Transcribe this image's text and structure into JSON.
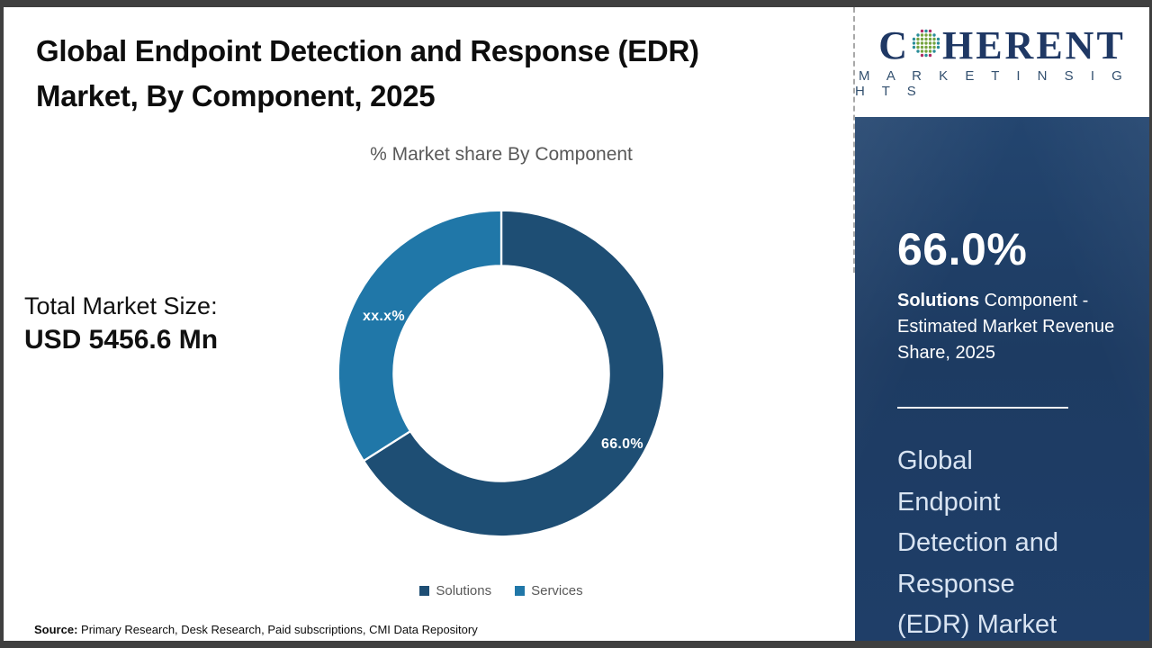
{
  "header": {
    "title": "Global Endpoint Detection and Response (EDR)\nMarket, By Component, 2025",
    "subtitle": "% Market share By Component"
  },
  "stats": {
    "total_label": "Total Market Size:",
    "total_value": "USD 5456.6 Mn"
  },
  "chart_data": {
    "type": "pie",
    "donut": true,
    "title": "% Market share By Component",
    "categories": [
      "Solutions",
      "Services"
    ],
    "values": [
      66.0,
      34.0
    ],
    "slice_labels": [
      "66.0%",
      "xx.x%"
    ],
    "colors": [
      "#1e4e74",
      "#2077a8"
    ],
    "start_angle_deg": 0,
    "direction": "clockwise",
    "legend_position": "bottom",
    "note": "Services share is masked on the chart as xx.x%"
  },
  "legend": {
    "items": [
      {
        "label": "Solutions",
        "color": "#1e4e74"
      },
      {
        "label": "Services",
        "color": "#2077a8"
      }
    ]
  },
  "source": {
    "label": "Source:",
    "text": " Primary Research, Desk Research, Paid subscriptions, CMI Data Repository"
  },
  "sidebar": {
    "logo": {
      "brand_start": "C",
      "brand_end": "HERENT",
      "tagline": "M A R K E T   I N S I G H T S",
      "globe_icon": "dotted-globe-icon",
      "brand_color": "#1f3864",
      "globe_dot_colors": {
        "teal": "#2a8d99",
        "green": "#74a33e",
        "magenta": "#b12a63"
      }
    },
    "stat_value": "66.0%",
    "stat_desc_bold": "Solutions",
    "stat_desc_rest": " Component - Estimated Market Revenue Share, 2025",
    "headline": "Global\nEndpoint\nDetection and\nResponse\n(EDR) Market",
    "panel_color": "#1f3e68"
  }
}
